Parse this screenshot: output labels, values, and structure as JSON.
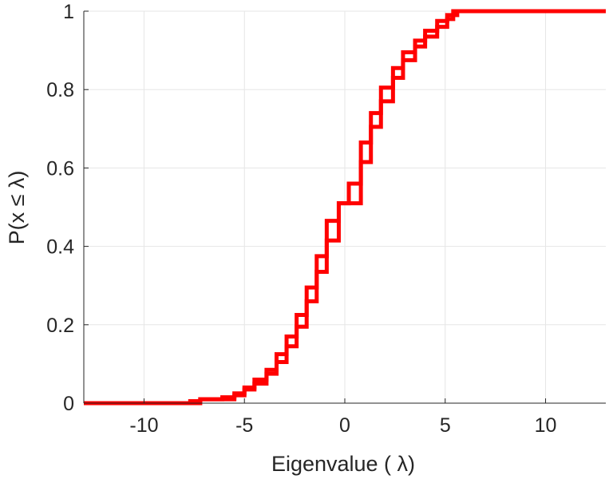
{
  "chart_data": {
    "type": "line",
    "xlabel": "Eigenvalue (   λ)",
    "ylabel": "P(x ≤ λ)",
    "xlim": [
      -13,
      13
    ],
    "ylim": [
      0,
      1
    ],
    "xticks": [
      -10,
      -5,
      0,
      5,
      10
    ],
    "xtick_labels": [
      "-10",
      "-5",
      "0",
      "5",
      "10"
    ],
    "yticks": [
      0,
      0.2,
      0.4,
      0.6,
      0.8,
      1
    ],
    "ytick_labels": [
      "0",
      "0.2",
      "0.4",
      "0.6",
      "0.8",
      "1"
    ],
    "grid": true,
    "series": [
      {
        "color": "#ff0000",
        "step": "post",
        "x": [
          -13,
          -7.7,
          -7.2,
          -6.1,
          -5.5,
          -5.0,
          -4.5,
          -3.9,
          -3.4,
          -2.9,
          -2.4,
          -1.9,
          -1.4,
          -0.9,
          -0.3,
          0.2,
          0.8,
          1.3,
          1.8,
          2.4,
          2.9,
          3.5,
          4.0,
          4.6,
          5.1,
          5.4,
          13
        ],
        "y": [
          0,
          0.0,
          0.01,
          0.015,
          0.02,
          0.035,
          0.05,
          0.075,
          0.105,
          0.145,
          0.195,
          0.26,
          0.335,
          0.415,
          0.51,
          0.51,
          0.615,
          0.705,
          0.77,
          0.83,
          0.875,
          0.91,
          0.935,
          0.96,
          0.98,
          1.0,
          1.0
        ]
      },
      {
        "color": "#ff0000",
        "step": "post",
        "x": [
          -13,
          -7.7,
          -7.2,
          -6.6,
          -5.5,
          -5.0,
          -4.5,
          -3.9,
          -3.4,
          -2.9,
          -2.4,
          -1.9,
          -1.4,
          -0.9,
          -0.3,
          0.2,
          0.8,
          1.3,
          1.8,
          2.4,
          2.9,
          3.5,
          4.0,
          4.6,
          5.1,
          5.6,
          13
        ],
        "y": [
          0,
          0.005,
          0.01,
          0.01,
          0.025,
          0.04,
          0.06,
          0.085,
          0.125,
          0.17,
          0.225,
          0.295,
          0.375,
          0.465,
          0.51,
          0.56,
          0.665,
          0.74,
          0.805,
          0.855,
          0.895,
          0.925,
          0.95,
          0.975,
          0.99,
          1.0,
          1.0
        ]
      }
    ]
  }
}
